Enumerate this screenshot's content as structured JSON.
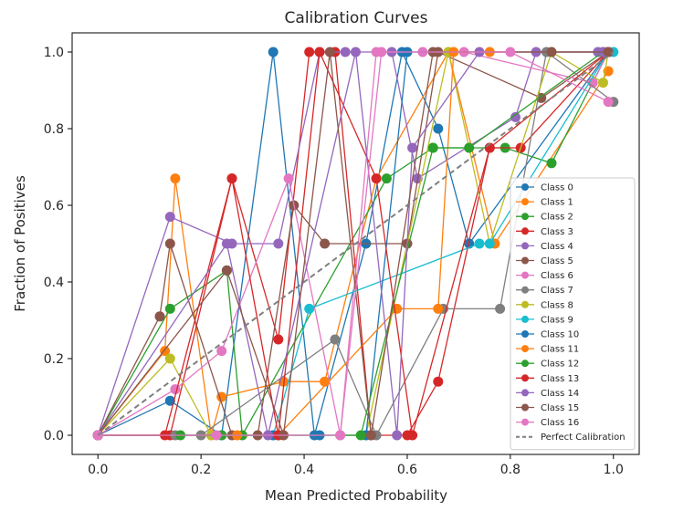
{
  "chart_data": {
    "type": "line",
    "title": "Calibration Curves",
    "xlabel": "Mean Predicted Probability",
    "ylabel": "Fraction of Positives",
    "xlim": [
      -0.05,
      1.05
    ],
    "ylim": [
      -0.05,
      1.05
    ],
    "xticks": [
      "0.0",
      "0.2",
      "0.4",
      "0.6",
      "0.8",
      "1.0"
    ],
    "yticks": [
      "0.0",
      "0.2",
      "0.4",
      "0.6",
      "0.8",
      "1.0"
    ],
    "grid": false,
    "legend_position": "lower-right",
    "series": [
      {
        "name": "Class 0",
        "color": "#1f77b4",
        "points": [
          [
            0.0,
            0.0
          ],
          [
            0.14,
            0.09
          ],
          [
            0.24,
            0.0
          ],
          [
            0.34,
            1.0
          ],
          [
            0.42,
            0.0
          ],
          [
            0.52,
            0.5
          ],
          [
            0.59,
            1.0
          ],
          [
            0.66,
            0.8
          ],
          [
            0.72,
            0.5
          ],
          [
            0.99,
            1.0
          ]
        ]
      },
      {
        "name": "Class 1",
        "color": "#ff7f0e",
        "points": [
          [
            0.0,
            0.0
          ],
          [
            0.13,
            0.22
          ],
          [
            0.15,
            0.67
          ],
          [
            0.22,
            0.0
          ],
          [
            0.24,
            0.1
          ],
          [
            0.36,
            0.14
          ],
          [
            0.44,
            0.14
          ],
          [
            0.54,
            0.67
          ],
          [
            0.68,
            1.0
          ],
          [
            0.77,
            0.5
          ],
          [
            0.99,
            0.95
          ]
        ]
      },
      {
        "name": "Class 2",
        "color": "#2ca02c",
        "points": [
          [
            0.0,
            0.0
          ],
          [
            0.14,
            0.33
          ],
          [
            0.25,
            0.43
          ],
          [
            0.28,
            0.0
          ],
          [
            0.56,
            0.67
          ],
          [
            0.65,
            0.75
          ],
          [
            0.79,
            0.75
          ],
          [
            0.88,
            0.71
          ],
          [
            0.99,
            1.0
          ]
        ]
      },
      {
        "name": "Class 3",
        "color": "#d62728",
        "points": [
          [
            0.0,
            0.0
          ],
          [
            0.14,
            0.0
          ],
          [
            0.26,
            0.67
          ],
          [
            0.35,
            0.25
          ],
          [
            0.41,
            1.0
          ],
          [
            0.46,
            1.0
          ],
          [
            0.53,
            0.0
          ],
          [
            0.6,
            0.0
          ],
          [
            0.66,
            0.14
          ],
          [
            0.76,
            0.75
          ],
          [
            0.82,
            0.75
          ],
          [
            0.99,
            1.0
          ]
        ]
      },
      {
        "name": "Class 4",
        "color": "#9467bd",
        "points": [
          [
            0.0,
            0.0
          ],
          [
            0.14,
            0.57
          ],
          [
            0.26,
            0.5
          ],
          [
            0.35,
            0.5
          ],
          [
            0.43,
            1.0
          ],
          [
            0.48,
            1.0
          ],
          [
            0.57,
            1.0
          ],
          [
            0.62,
            0.67
          ],
          [
            0.81,
            0.83
          ],
          [
            0.85,
            1.0
          ],
          [
            0.97,
            1.0
          ]
        ]
      },
      {
        "name": "Class 5",
        "color": "#8c564b",
        "points": [
          [
            0.0,
            0.0
          ],
          [
            0.12,
            0.31
          ],
          [
            0.14,
            0.5
          ],
          [
            0.26,
            0.0
          ],
          [
            0.31,
            0.0
          ],
          [
            0.38,
            0.6
          ],
          [
            0.44,
            0.5
          ],
          [
            0.6,
            0.5
          ],
          [
            0.66,
            1.0
          ],
          [
            0.86,
            0.88
          ],
          [
            0.99,
            1.0
          ]
        ]
      },
      {
        "name": "Class 6",
        "color": "#e377c2",
        "points": [
          [
            0.0,
            0.0
          ],
          [
            0.15,
            0.12
          ],
          [
            0.24,
            0.22
          ],
          [
            0.37,
            0.67
          ],
          [
            0.47,
            0.0
          ],
          [
            0.54,
            1.0
          ],
          [
            0.63,
            1.0
          ],
          [
            0.71,
            1.0
          ],
          [
            0.96,
            0.92
          ],
          [
            0.99,
            1.0
          ]
        ]
      },
      {
        "name": "Class 7",
        "color": "#7f7f7f",
        "points": [
          [
            0.0,
            0.0
          ],
          [
            0.15,
            0.0
          ],
          [
            0.2,
            0.0
          ],
          [
            0.46,
            0.25
          ],
          [
            0.54,
            0.0
          ],
          [
            0.67,
            0.33
          ],
          [
            0.78,
            0.33
          ],
          [
            0.87,
            1.0
          ],
          [
            1.0,
            0.87
          ]
        ]
      },
      {
        "name": "Class 8",
        "color": "#bcbd22",
        "points": [
          [
            0.0,
            0.0
          ],
          [
            0.14,
            0.2
          ],
          [
            0.22,
            0.0
          ],
          [
            0.52,
            0.0
          ],
          [
            0.68,
            1.0
          ],
          [
            0.76,
            0.5
          ],
          [
            0.88,
            1.0
          ],
          [
            0.98,
            0.92
          ],
          [
            0.99,
            1.0
          ]
        ]
      },
      {
        "name": "Class 9",
        "color": "#17becf",
        "points": [
          [
            0.0,
            0.0
          ],
          [
            0.34,
            0.0
          ],
          [
            0.41,
            0.33
          ],
          [
            0.74,
            0.5
          ],
          [
            0.76,
            0.5
          ],
          [
            0.99,
            1.0
          ],
          [
            1.0,
            1.0
          ]
        ]
      },
      {
        "name": "Class 10",
        "color": "#1f77b4",
        "points": [
          [
            0.0,
            0.0
          ],
          [
            0.34,
            0.0
          ],
          [
            0.43,
            0.0
          ],
          [
            0.52,
            0.0
          ],
          [
            0.6,
            1.0
          ],
          [
            0.99,
            1.0
          ]
        ]
      },
      {
        "name": "Class 11",
        "color": "#ff7f0e",
        "points": [
          [
            0.0,
            0.0
          ],
          [
            0.27,
            0.0
          ],
          [
            0.35,
            0.0
          ],
          [
            0.58,
            0.33
          ],
          [
            0.66,
            0.33
          ],
          [
            0.69,
            1.0
          ],
          [
            0.76,
            1.0
          ],
          [
            0.99,
            1.0
          ]
        ]
      },
      {
        "name": "Class 12",
        "color": "#2ca02c",
        "points": [
          [
            0.0,
            0.0
          ],
          [
            0.16,
            0.0
          ],
          [
            0.24,
            0.0
          ],
          [
            0.35,
            0.0
          ],
          [
            0.51,
            0.0
          ],
          [
            0.65,
            0.75
          ],
          [
            0.72,
            0.75
          ],
          [
            0.98,
            1.0
          ]
        ]
      },
      {
        "name": "Class 13",
        "color": "#d62728",
        "points": [
          [
            0.0,
            0.0
          ],
          [
            0.13,
            0.0
          ],
          [
            0.26,
            0.67
          ],
          [
            0.35,
            0.0
          ],
          [
            0.43,
            1.0
          ],
          [
            0.54,
            0.67
          ],
          [
            0.61,
            0.0
          ],
          [
            0.76,
            0.75
          ],
          [
            0.99,
            1.0
          ]
        ]
      },
      {
        "name": "Class 14",
        "color": "#9467bd",
        "points": [
          [
            0.0,
            0.0
          ],
          [
            0.25,
            0.5
          ],
          [
            0.33,
            0.0
          ],
          [
            0.5,
            1.0
          ],
          [
            0.58,
            0.0
          ],
          [
            0.61,
            0.75
          ],
          [
            0.74,
            1.0
          ],
          [
            0.98,
            1.0
          ]
        ]
      },
      {
        "name": "Class 15",
        "color": "#8c564b",
        "points": [
          [
            0.0,
            0.0
          ],
          [
            0.25,
            0.43
          ],
          [
            0.36,
            0.0
          ],
          [
            0.45,
            1.0
          ],
          [
            0.53,
            0.0
          ],
          [
            0.65,
            1.0
          ],
          [
            0.88,
            1.0
          ],
          [
            0.99,
            1.0
          ]
        ]
      },
      {
        "name": "Class 16",
        "color": "#e377c2",
        "points": [
          [
            0.0,
            0.0
          ],
          [
            0.23,
            0.0
          ],
          [
            0.47,
            0.0
          ],
          [
            0.55,
            1.0
          ],
          [
            0.8,
            1.0
          ],
          [
            0.99,
            0.87
          ]
        ]
      }
    ],
    "reference_line": {
      "name": "Perfect Calibration",
      "color": "#7f7f7f",
      "style": "dashed",
      "points": [
        [
          0.0,
          0.0
        ],
        [
          1.0,
          1.0
        ]
      ]
    }
  }
}
